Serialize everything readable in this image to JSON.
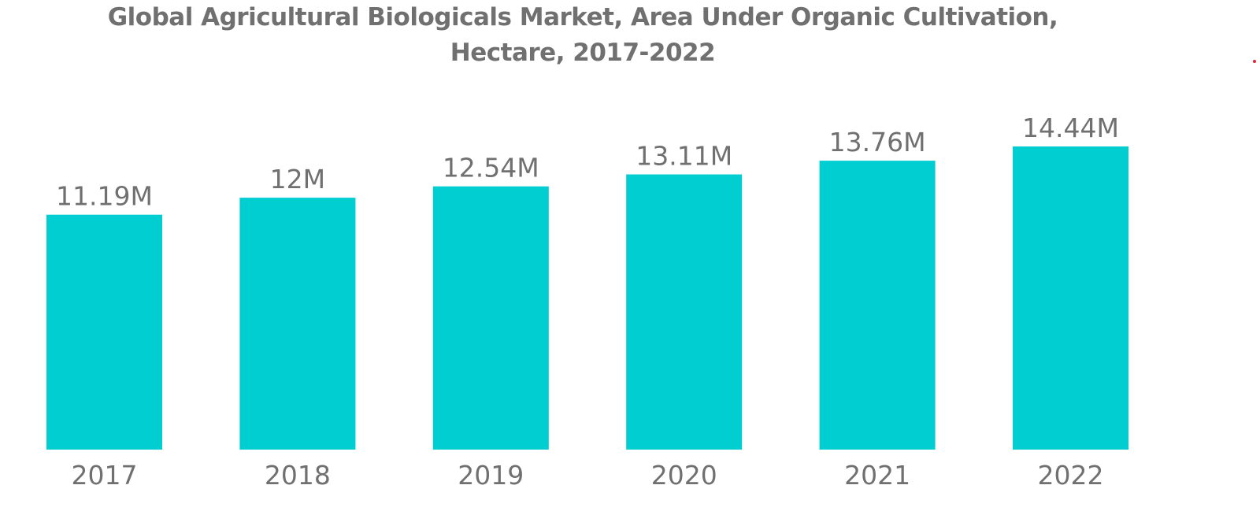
{
  "title_lines": [
    "Global Agricultural Biologicals Market, Area Under Organic Cultivation,",
    "Hectare, 2017-2022"
  ],
  "colors": {
    "bar": "#00ced1",
    "text": "#707070",
    "accent_dot": "#e5203a"
  },
  "chart_data": {
    "type": "bar",
    "title": "Global Agricultural Biologicals Market, Area Under Organic Cultivation, Hectare, 2017-2022",
    "categories": [
      "2017",
      "2018",
      "2019",
      "2020",
      "2021",
      "2022"
    ],
    "values": [
      11.19,
      12,
      12.54,
      13.11,
      13.76,
      14.44
    ],
    "value_labels": [
      "11.19M",
      "12M",
      "12.54M",
      "13.11M",
      "13.76M",
      "14.44M"
    ],
    "xlabel": "",
    "ylabel": "",
    "ylim": [
      0,
      14.44
    ],
    "grid": false,
    "legend": "none"
  }
}
